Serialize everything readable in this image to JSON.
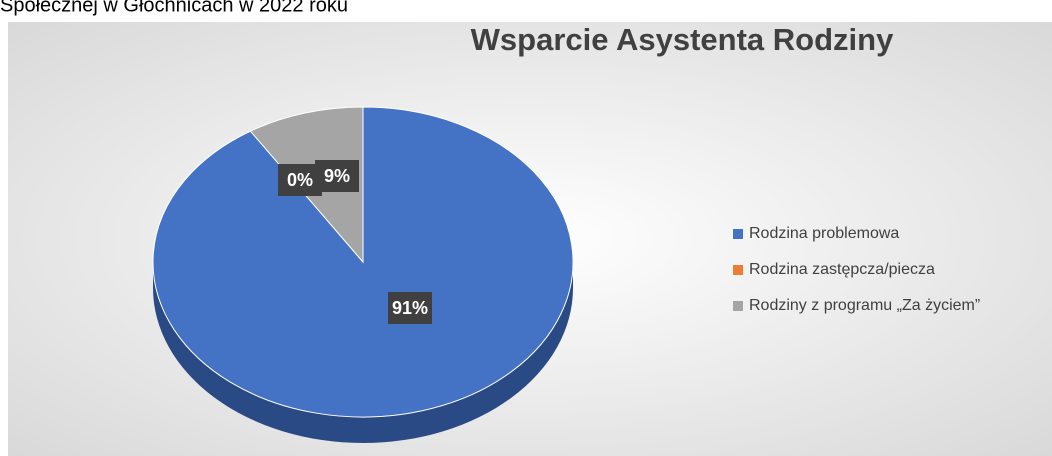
{
  "header": {
    "text": "Społecznej w Głochnicach w 2022 roku"
  },
  "chart_data": {
    "type": "pie",
    "title": "Wsparcie Asystenta Rodziny",
    "categories": [
      "Rodzina problemowa",
      "Rodzina zastępcza/piecza",
      "Rodziny z programu „Za życiem”"
    ],
    "values": [
      91,
      0,
      9
    ],
    "value_labels": [
      "91%",
      "0%",
      "9%"
    ],
    "colors": [
      "#4472c4",
      "#ed7d31",
      "#a5a5a5"
    ],
    "legend": "right"
  }
}
